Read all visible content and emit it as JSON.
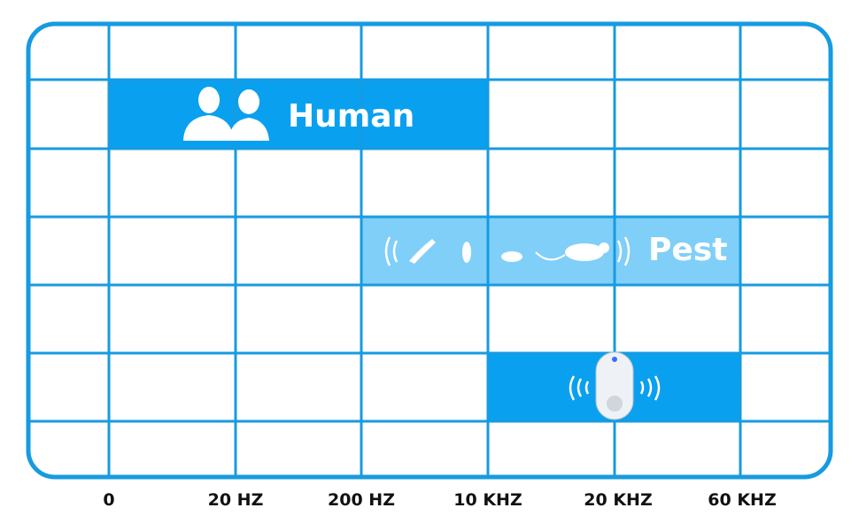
{
  "axis_labels": [
    "0",
    "20 HZ",
    "200 HZ",
    "10 KHZ",
    "20 KHZ",
    "60 KHZ"
  ],
  "bands": [
    {
      "label": "Human"
    },
    {
      "label": "Pest"
    }
  ]
}
